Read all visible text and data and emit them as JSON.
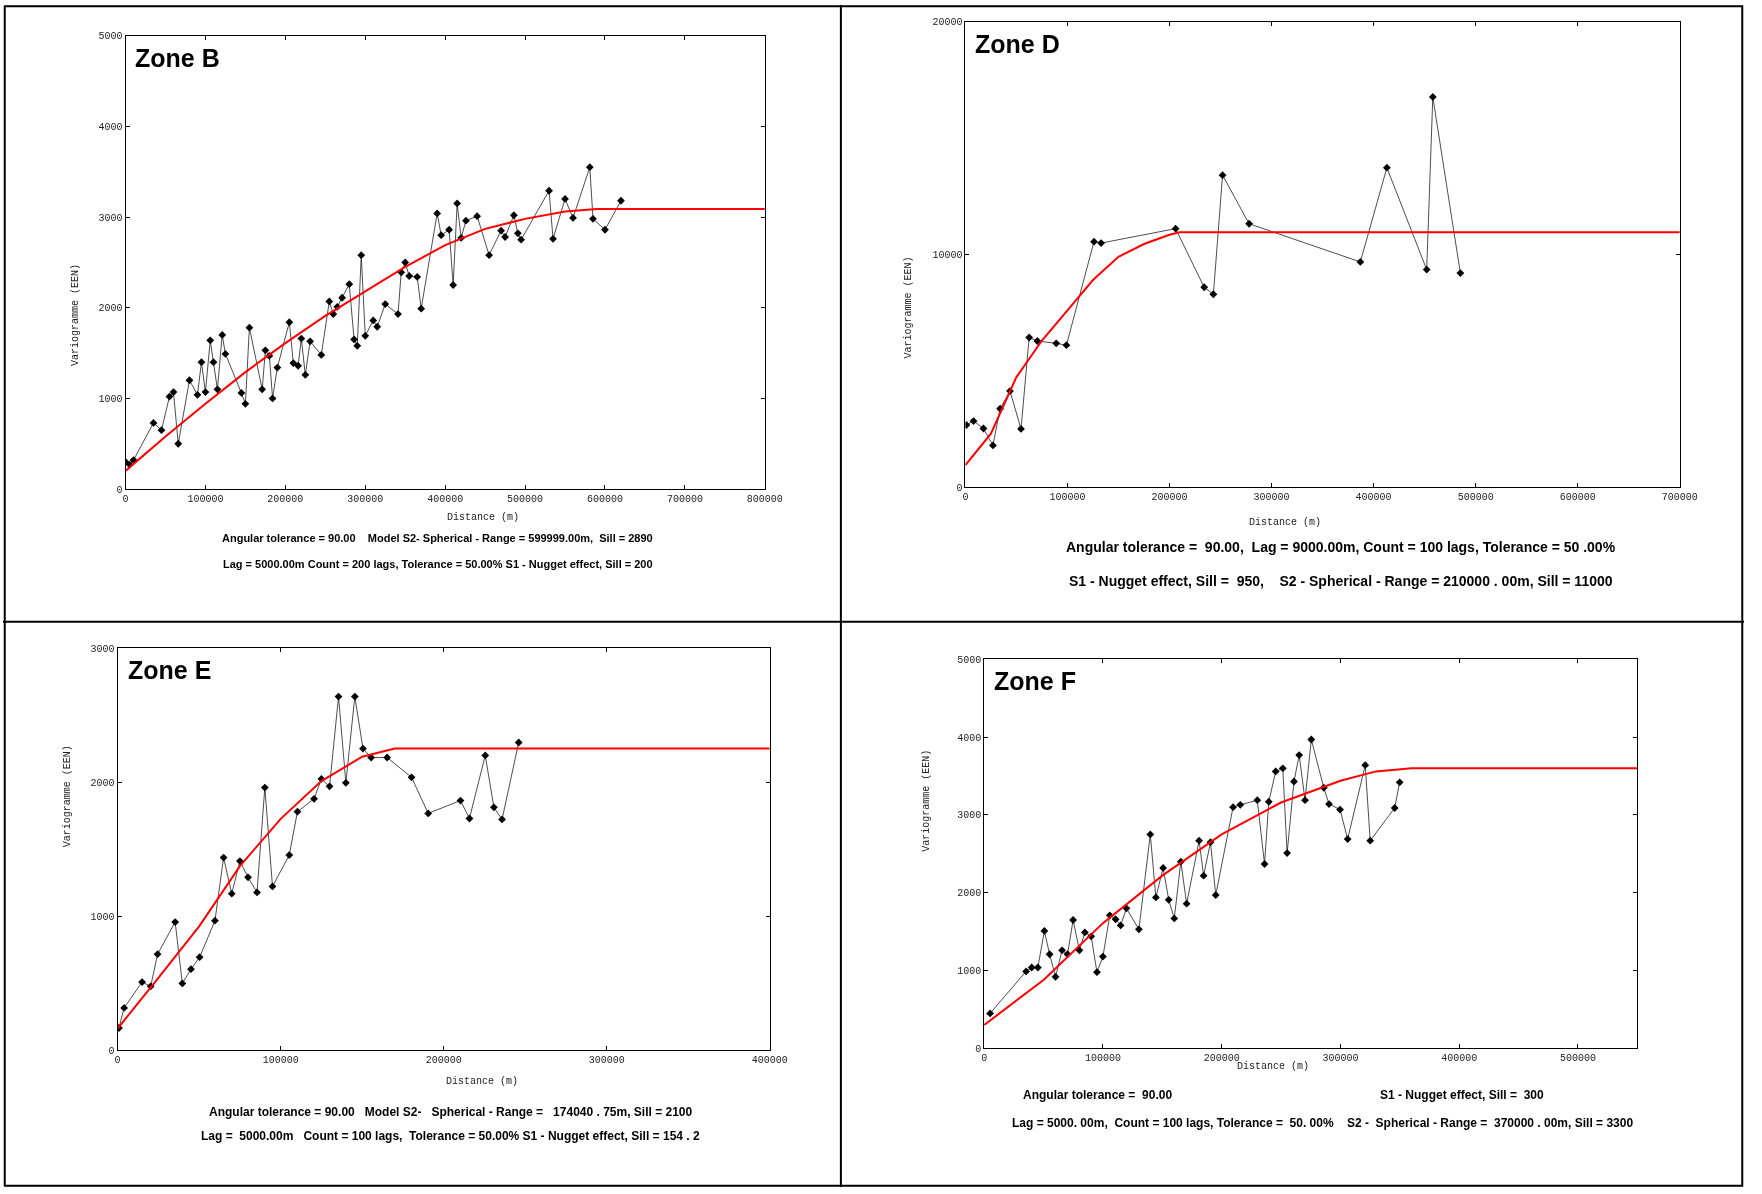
{
  "chart_data": [
    {
      "type": "line",
      "title": "Zone B",
      "xlabel": "Distance (m)",
      "ylabel": "Variogramme (EEN)",
      "xlim": [
        0,
        800000
      ],
      "xticks": [
        0,
        100000,
        200000,
        300000,
        400000,
        500000,
        600000,
        700000,
        800000
      ],
      "ylim": [
        0,
        5000
      ],
      "yticks": [
        0,
        1000,
        2000,
        3000,
        4000,
        5000
      ],
      "grid": false,
      "legend": false,
      "marker": "diamond",
      "line_style": "solid",
      "annotations": [
        "Angular tolerance = 90.00    Model S2- Spherical - Range = 599999.00m,  Sill = 2890",
        "Lag = 5000.00m Count = 200 lags, Tolerance = 50.00% S1 - Nugget effect, Sill = 200"
      ],
      "series": [
        {
          "color": "#000000",
          "x": [
            0,
            5000,
            10000,
            35000,
            45000,
            55000,
            60000,
            66000,
            80000,
            90000,
            95000,
            100000,
            106000,
            110000,
            115000,
            121000,
            125000,
            145000,
            150000,
            155000,
            171000,
            175000,
            180000,
            184000,
            190000,
            205000,
            210000,
            216000,
            220000,
            225000,
            231000,
            245000,
            255000,
            260000,
            265000,
            271000,
            280000,
            286000,
            290000,
            295000,
            300000,
            310000,
            315000,
            325000,
            341000,
            345000,
            350000,
            355000,
            365000,
            370000,
            390000,
            395000,
            405000,
            410000,
            415000,
            420000,
            426000,
            440000,
            455000,
            470000,
            475000,
            486000,
            491000,
            495000,
            530000,
            535000,
            550000,
            560000,
            581000,
            585000,
            600000,
            620000
          ],
          "values": [
            300,
            270,
            320,
            730,
            650,
            1020,
            1070,
            500,
            1200,
            1040,
            1400,
            1070,
            1640,
            1400,
            1100,
            1700,
            1490,
            1060,
            940,
            1780,
            1100,
            1530,
            1470,
            1000,
            1340,
            1840,
            1390,
            1360,
            1660,
            1260,
            1630,
            1480,
            2070,
            1930,
            2010,
            2110,
            2260,
            1650,
            1580,
            2580,
            1690,
            1860,
            1790,
            2040,
            1930,
            2390,
            2500,
            2350,
            2340,
            1990,
            3040,
            2800,
            2860,
            2250,
            3150,
            2770,
            2960,
            3010,
            2580,
            2850,
            2780,
            3020,
            2820,
            2750,
            3290,
            2760,
            3200,
            2990,
            3550,
            2980,
            2860,
            3180
          ]
        },
        {
          "color": "#ff0000",
          "marker": "none",
          "x": [
            0,
            50000,
            100000,
            150000,
            200000,
            250000,
            300000,
            350000,
            400000,
            450000,
            500000,
            550000,
            590000,
            800000
          ],
          "values": [
            200,
            580,
            940,
            1290,
            1610,
            1910,
            2180,
            2450,
            2690,
            2870,
            2980,
            3060,
            3090,
            3090
          ]
        }
      ]
    },
    {
      "type": "line",
      "title": "Zone D",
      "xlabel": "Distance (m)",
      "ylabel": "Variogramme (EEN)",
      "xlim": [
        0,
        700000
      ],
      "xticks": [
        0,
        100000,
        200000,
        300000,
        400000,
        500000,
        600000,
        700000
      ],
      "ylim": [
        0,
        20000
      ],
      "yticks": [
        0,
        10000,
        20000
      ],
      "grid": false,
      "legend": false,
      "marker": "diamond",
      "line_style": "solid",
      "annotations": [
        "Angular tolerance =  90.00,  Lag = 9000.00m, Count = 100 lags, Tolerance = 50 .00%",
        "S1 - Nugget effect, Sill =  950,    S2 - Spherical - Range = 210000 . 00m, Sill = 11000"
      ],
      "series": [
        {
          "color": "#000000",
          "x": [
            1000,
            8000,
            17700,
            27000,
            34000,
            43700,
            54500,
            62500,
            70500,
            89000,
            99000,
            126000,
            133000,
            206000,
            234000,
            243000,
            252000,
            278000,
            387000,
            413000,
            452000,
            458000,
            485000
          ],
          "values": [
            2670,
            2840,
            2520,
            1790,
            3370,
            4130,
            2500,
            6430,
            6280,
            6180,
            6100,
            10550,
            10490,
            11110,
            8590,
            8290,
            13410,
            11320,
            9680,
            13730,
            9350,
            16770,
            9200
          ]
        },
        {
          "color": "#ff0000",
          "marker": "none",
          "x": [
            0,
            25000,
            50000,
            75000,
            100000,
            125000,
            150000,
            175000,
            200000,
            210000,
            700000
          ],
          "values": [
            950,
            2300,
            4730,
            6300,
            7600,
            8900,
            9900,
            10450,
            10850,
            10950,
            10950
          ]
        }
      ]
    },
    {
      "type": "line",
      "title": "Zone E",
      "xlabel": "Distance (m)",
      "ylabel": "Variogramme (EEN)",
      "xlim": [
        0,
        400000
      ],
      "xticks": [
        0,
        100000,
        200000,
        300000,
        400000
      ],
      "ylim": [
        0,
        3000
      ],
      "yticks": [
        0,
        1000,
        2000,
        3000
      ],
      "grid": false,
      "legend": false,
      "marker": "diamond",
      "line_style": "solid",
      "annotations": [
        "Angular tolerance = 90.00   Model S2-   Spherical - Range =   174040 . 75m, Sill = 2100",
        "Lag =  5000.00m   Count = 100 lags,  Tolerance = 50.00% S1 - Nugget effect, Sill = 154 . 2"
      ],
      "series": [
        {
          "color": "#000000",
          "x": [
            800,
            4000,
            15000,
            20300,
            24500,
            35300,
            39700,
            45000,
            50300,
            59700,
            65000,
            70000,
            75000,
            80000,
            85500,
            90300,
            95000,
            105300,
            110300,
            120500,
            125000,
            130000,
            135500,
            140000,
            145500,
            150500,
            155500,
            165300,
            180300,
            190500,
            210300,
            215800,
            225500,
            230800,
            235800,
            246000
          ],
          "values": [
            167,
            317,
            510,
            478,
            718,
            958,
            500,
            606,
            696,
            968,
            1439,
            1170,
            1413,
            1292,
            1179,
            1962,
            1224,
            1458,
            1782,
            1878,
            2026,
            1971,
            2641,
            1997,
            2641,
            2253,
            2186,
            2186,
            2038,
            1769,
            1865,
            1731,
            2202,
            1814,
            1724,
            2298
          ]
        },
        {
          "color": "#ff0000",
          "marker": "none",
          "x": [
            0,
            25000,
            50000,
            75000,
            100000,
            125000,
            150000,
            170000,
            400000
          ],
          "values": [
            163,
            542,
            926,
            1375,
            1728,
            2010,
            2192,
            2253,
            2253
          ]
        }
      ]
    },
    {
      "type": "line",
      "title": "Zone F",
      "xlabel": "Distance (m)",
      "ylabel": "Variogramme (EEN)",
      "xlim": [
        0,
        550000
      ],
      "xticks": [
        0,
        100000,
        200000,
        300000,
        400000,
        500000
      ],
      "ylim": [
        0,
        5000
      ],
      "yticks": [
        0,
        1000,
        2000,
        3000,
        4000,
        5000
      ],
      "grid": false,
      "legend": false,
      "marker": "diamond",
      "line_style": "solid",
      "annotations": [
        "Angular tolerance =  90.00",
        "S1 - Nugget effect, Sill =  300",
        "Lag = 5000. 00m,  Count = 100 lags, Tolerance =  50. 00%    S2 -  Spherical - Range =  370000 . 00m, Sill = 3300"
      ],
      "series": [
        {
          "color": "#000000",
          "x": [
            5000,
            35300,
            40000,
            45200,
            50700,
            55100,
            60100,
            65600,
            70200,
            74900,
            80200,
            84800,
            90100,
            95000,
            100000,
            105800,
            110700,
            114900,
            119800,
            130300,
            139900,
            144600,
            150700,
            155400,
            160100,
            165600,
            170500,
            181000,
            184800,
            190600,
            195000,
            209600,
            215700,
            230000,
            236100,
            239700,
            245500,
            251500,
            255100,
            260900,
            265300,
            270200,
            275500,
            286000,
            290400,
            299700,
            306100,
            320900,
            325100,
            345700,
            349900
          ],
          "values": [
            450,
            990,
            1040,
            1040,
            1510,
            1210,
            920,
            1260,
            1210,
            1650,
            1260,
            1490,
            1440,
            980,
            1180,
            1710,
            1660,
            1580,
            1800,
            1530,
            2750,
            1940,
            2320,
            1910,
            1670,
            2400,
            1860,
            2670,
            2220,
            2650,
            1970,
            3100,
            3130,
            3190,
            2370,
            3170,
            3560,
            3600,
            2510,
            3430,
            3770,
            3190,
            3970,
            3350,
            3140,
            3070,
            2690,
            3640,
            2670,
            3090,
            3420
          ]
        },
        {
          "color": "#ff0000",
          "marker": "none",
          "x": [
            0,
            50000,
            100000,
            150000,
            200000,
            250000,
            300000,
            330000,
            360000,
            550000
          ],
          "values": [
            300,
            880,
            1610,
            2220,
            2750,
            3160,
            3440,
            3560,
            3600,
            3600
          ]
        }
      ]
    }
  ]
}
